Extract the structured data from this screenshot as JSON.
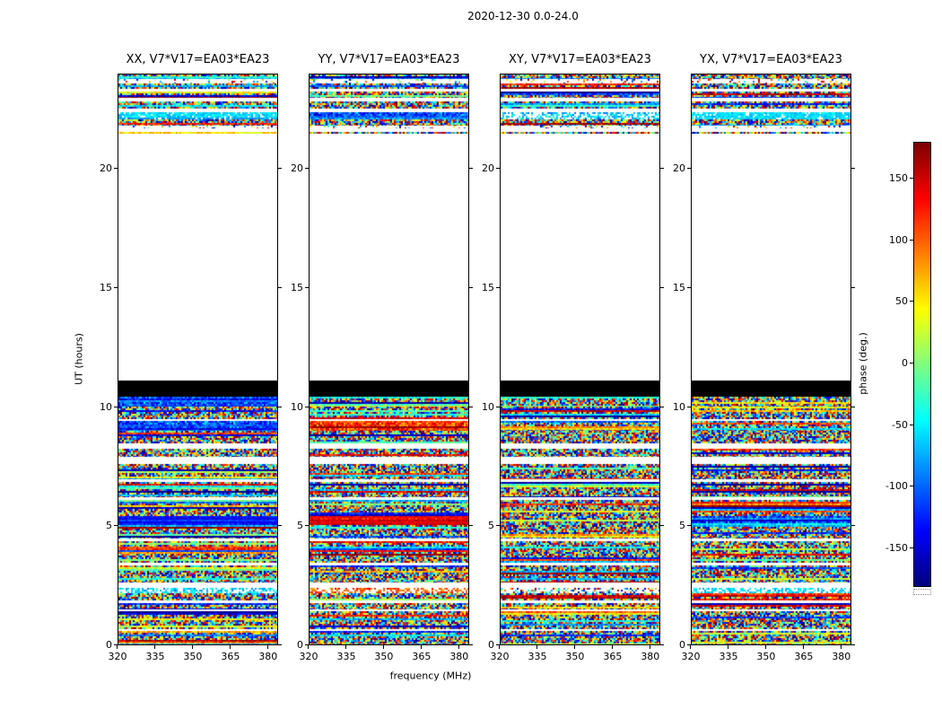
{
  "figure": {
    "title": "2020-12-30 0.0-24.0",
    "xlabel": "frequency (MHz)",
    "ylabel": "UT (hours)",
    "colorbar_label": "phase (deg.)"
  },
  "axes": {
    "x_range": [
      320,
      384
    ],
    "x_ticks": [
      320,
      335,
      350,
      365,
      380
    ],
    "y_range": [
      0,
      24
    ],
    "y_ticks": [
      0,
      5,
      10,
      15,
      20
    ],
    "colorbar_range": [
      -180,
      180
    ],
    "colorbar_ticks": [
      150,
      100,
      50,
      0,
      -50,
      -100,
      -150
    ]
  },
  "chart_data": {
    "type": "heatmap",
    "title": "2020-12-30 0.0-24.0",
    "xlabel": "frequency (MHz)",
    "ylabel": "UT (hours)",
    "zlabel": "phase (deg.)",
    "colormap": "jet",
    "x_range_mhz": [
      320,
      384
    ],
    "y_range_hours": [
      0,
      24
    ],
    "z_range_deg": [
      -180,
      180
    ],
    "band_kind_legend": "n=random phase noise, w=no data (white), k=flagged (black), b=blue phase ~-125deg, r=red/orange phase ~+130deg, nb=blue-biased noise, nr=red-biased noise, c=cyan band ~-55deg, pc=pale cyan speckle, pw=pale warm speckle, p=pale speckle, sp=sparse speckle",
    "panels": [
      {
        "title": "XX, V7*V17=EA03*EA23",
        "bands": [
          [
            0,
            0.58,
            "n"
          ],
          [
            0.58,
            0.66,
            "w"
          ],
          [
            0.66,
            1.38,
            "n"
          ],
          [
            1.38,
            1.46,
            "w"
          ],
          [
            1.46,
            1.72,
            "n"
          ],
          [
            1.72,
            1.84,
            "w"
          ],
          [
            1.84,
            2.14,
            "n"
          ],
          [
            2.14,
            2.4,
            "pc"
          ],
          [
            2.4,
            2.62,
            "w"
          ],
          [
            2.62,
            3.34,
            "n"
          ],
          [
            3.34,
            3.45,
            "w"
          ],
          [
            3.45,
            3.88,
            "n"
          ],
          [
            3.88,
            3.98,
            "b"
          ],
          [
            3.98,
            4.34,
            "n"
          ],
          [
            4.34,
            4.46,
            "w"
          ],
          [
            4.46,
            5.02,
            "n"
          ],
          [
            5.02,
            5.42,
            "b"
          ],
          [
            5.42,
            6.08,
            "n"
          ],
          [
            6.08,
            6.2,
            "w"
          ],
          [
            6.2,
            6.84,
            "n"
          ],
          [
            6.84,
            6.96,
            "w"
          ],
          [
            6.96,
            7.58,
            "n"
          ],
          [
            7.58,
            7.9,
            "w"
          ],
          [
            7.9,
            8.24,
            "n"
          ],
          [
            8.24,
            8.46,
            "w"
          ],
          [
            8.46,
            8.98,
            "n"
          ],
          [
            8.98,
            9.4,
            "nb"
          ],
          [
            9.4,
            9.5,
            "w"
          ],
          [
            9.5,
            10.0,
            "n"
          ],
          [
            10.0,
            10.42,
            "nb"
          ],
          [
            10.42,
            11.1,
            "k"
          ],
          [
            11.1,
            21.52,
            "w"
          ],
          [
            21.52,
            21.6,
            "n"
          ],
          [
            21.6,
            21.72,
            "w"
          ],
          [
            21.72,
            21.84,
            "sp"
          ],
          [
            21.84,
            22.1,
            "n"
          ],
          [
            22.1,
            22.42,
            "c"
          ],
          [
            22.42,
            22.56,
            "w"
          ],
          [
            22.56,
            22.86,
            "n"
          ],
          [
            22.86,
            23.0,
            "w"
          ],
          [
            23.0,
            23.3,
            "n"
          ],
          [
            23.3,
            23.4,
            "w"
          ],
          [
            23.4,
            23.64,
            "n"
          ],
          [
            23.64,
            23.8,
            "sp"
          ],
          [
            23.8,
            24.0,
            "n"
          ]
        ]
      },
      {
        "title": "YY, V7*V17=EA03*EA23",
        "bands": [
          [
            0,
            0.58,
            "n"
          ],
          [
            0.58,
            0.66,
            "w"
          ],
          [
            0.66,
            1.38,
            "n"
          ],
          [
            1.38,
            1.46,
            "w"
          ],
          [
            1.46,
            1.72,
            "n"
          ],
          [
            1.72,
            1.84,
            "w"
          ],
          [
            1.84,
            2.14,
            "n"
          ],
          [
            2.14,
            2.4,
            "pw"
          ],
          [
            2.4,
            2.62,
            "w"
          ],
          [
            2.62,
            3.34,
            "n"
          ],
          [
            3.34,
            3.45,
            "w"
          ],
          [
            3.45,
            3.88,
            "n"
          ],
          [
            3.88,
            3.98,
            "r"
          ],
          [
            3.98,
            4.34,
            "n"
          ],
          [
            4.34,
            4.46,
            "w"
          ],
          [
            4.46,
            5.02,
            "n"
          ],
          [
            5.02,
            5.42,
            "r"
          ],
          [
            5.42,
            6.08,
            "n"
          ],
          [
            6.08,
            6.2,
            "w"
          ],
          [
            6.2,
            6.84,
            "n"
          ],
          [
            6.84,
            6.96,
            "w"
          ],
          [
            6.96,
            7.58,
            "n"
          ],
          [
            7.58,
            7.9,
            "w"
          ],
          [
            7.9,
            8.24,
            "n"
          ],
          [
            8.24,
            8.46,
            "w"
          ],
          [
            8.46,
            8.98,
            "n"
          ],
          [
            8.98,
            9.4,
            "nr"
          ],
          [
            9.4,
            9.5,
            "w"
          ],
          [
            9.5,
            10.0,
            "n"
          ],
          [
            10.0,
            10.42,
            "n"
          ],
          [
            10.42,
            11.1,
            "k"
          ],
          [
            11.1,
            21.52,
            "w"
          ],
          [
            21.52,
            21.6,
            "n"
          ],
          [
            21.6,
            21.72,
            "w"
          ],
          [
            21.72,
            21.84,
            "sp"
          ],
          [
            21.84,
            22.1,
            "n"
          ],
          [
            22.1,
            22.42,
            "nb"
          ],
          [
            22.42,
            22.56,
            "w"
          ],
          [
            22.56,
            22.86,
            "n"
          ],
          [
            22.86,
            23.0,
            "w"
          ],
          [
            23.0,
            23.3,
            "n"
          ],
          [
            23.3,
            23.4,
            "w"
          ],
          [
            23.4,
            23.64,
            "n"
          ],
          [
            23.64,
            23.8,
            "sp"
          ],
          [
            23.8,
            24.0,
            "n"
          ]
        ]
      },
      {
        "title": "XY, V7*V17=EA03*EA23",
        "bands": [
          [
            0,
            0.58,
            "n"
          ],
          [
            0.58,
            0.66,
            "w"
          ],
          [
            0.66,
            1.38,
            "n"
          ],
          [
            1.38,
            1.46,
            "w"
          ],
          [
            1.46,
            1.72,
            "n"
          ],
          [
            1.72,
            1.84,
            "w"
          ],
          [
            1.84,
            2.14,
            "n"
          ],
          [
            2.14,
            2.4,
            "p"
          ],
          [
            2.4,
            2.62,
            "w"
          ],
          [
            2.62,
            3.34,
            "n"
          ],
          [
            3.34,
            3.45,
            "w"
          ],
          [
            3.45,
            3.88,
            "n"
          ],
          [
            3.88,
            3.98,
            "n"
          ],
          [
            3.98,
            4.34,
            "n"
          ],
          [
            4.34,
            4.46,
            "w"
          ],
          [
            4.46,
            5.02,
            "n"
          ],
          [
            5.02,
            5.42,
            "n"
          ],
          [
            5.42,
            6.08,
            "n"
          ],
          [
            6.08,
            6.2,
            "w"
          ],
          [
            6.2,
            6.84,
            "n"
          ],
          [
            6.84,
            6.96,
            "w"
          ],
          [
            6.96,
            7.58,
            "n"
          ],
          [
            7.58,
            7.9,
            "w"
          ],
          [
            7.9,
            8.24,
            "n"
          ],
          [
            8.24,
            8.46,
            "w"
          ],
          [
            8.46,
            8.98,
            "n"
          ],
          [
            8.98,
            9.4,
            "n"
          ],
          [
            9.4,
            9.5,
            "w"
          ],
          [
            9.5,
            10.0,
            "n"
          ],
          [
            10.0,
            10.42,
            "n"
          ],
          [
            10.42,
            11.1,
            "k"
          ],
          [
            11.1,
            21.52,
            "w"
          ],
          [
            21.52,
            21.6,
            "n"
          ],
          [
            21.6,
            21.72,
            "w"
          ],
          [
            21.72,
            21.84,
            "sp"
          ],
          [
            21.84,
            22.1,
            "n"
          ],
          [
            22.1,
            22.42,
            "pc"
          ],
          [
            22.42,
            22.56,
            "w"
          ],
          [
            22.56,
            22.86,
            "n"
          ],
          [
            22.86,
            23.0,
            "w"
          ],
          [
            23.0,
            23.3,
            "n"
          ],
          [
            23.3,
            23.4,
            "w"
          ],
          [
            23.4,
            23.64,
            "n"
          ],
          [
            23.64,
            23.8,
            "sp"
          ],
          [
            23.8,
            24.0,
            "n"
          ]
        ]
      },
      {
        "title": "YX, V7*V17=EA03*EA23",
        "bands": [
          [
            0,
            0.58,
            "n"
          ],
          [
            0.58,
            0.66,
            "w"
          ],
          [
            0.66,
            1.38,
            "n"
          ],
          [
            1.38,
            1.46,
            "w"
          ],
          [
            1.46,
            1.72,
            "n"
          ],
          [
            1.72,
            1.84,
            "w"
          ],
          [
            1.84,
            2.14,
            "n"
          ],
          [
            2.14,
            2.4,
            "pc"
          ],
          [
            2.4,
            2.62,
            "w"
          ],
          [
            2.62,
            3.34,
            "n"
          ],
          [
            3.34,
            3.45,
            "w"
          ],
          [
            3.45,
            3.88,
            "n"
          ],
          [
            3.88,
            3.98,
            "n"
          ],
          [
            3.98,
            4.34,
            "n"
          ],
          [
            4.34,
            4.46,
            "w"
          ],
          [
            4.46,
            5.02,
            "n"
          ],
          [
            5.02,
            5.42,
            "nb"
          ],
          [
            5.42,
            6.08,
            "n"
          ],
          [
            6.08,
            6.2,
            "w"
          ],
          [
            6.2,
            6.84,
            "n"
          ],
          [
            6.84,
            6.96,
            "w"
          ],
          [
            6.96,
            7.58,
            "n"
          ],
          [
            7.58,
            7.9,
            "w"
          ],
          [
            7.9,
            8.24,
            "n"
          ],
          [
            8.24,
            8.46,
            "w"
          ],
          [
            8.46,
            8.98,
            "n"
          ],
          [
            8.98,
            9.4,
            "n"
          ],
          [
            9.4,
            9.5,
            "w"
          ],
          [
            9.5,
            10.0,
            "n"
          ],
          [
            10.0,
            10.42,
            "n"
          ],
          [
            10.42,
            11.1,
            "k"
          ],
          [
            11.1,
            21.52,
            "w"
          ],
          [
            21.52,
            21.6,
            "n"
          ],
          [
            21.6,
            21.72,
            "w"
          ],
          [
            21.72,
            21.84,
            "sp"
          ],
          [
            21.84,
            22.1,
            "n"
          ],
          [
            22.1,
            22.42,
            "c"
          ],
          [
            22.42,
            22.56,
            "w"
          ],
          [
            22.56,
            22.86,
            "n"
          ],
          [
            22.86,
            23.0,
            "w"
          ],
          [
            23.0,
            23.3,
            "n"
          ],
          [
            23.3,
            23.4,
            "w"
          ],
          [
            23.4,
            23.64,
            "n"
          ],
          [
            23.64,
            23.8,
            "sp"
          ],
          [
            23.8,
            24.0,
            "n"
          ]
        ]
      }
    ]
  }
}
